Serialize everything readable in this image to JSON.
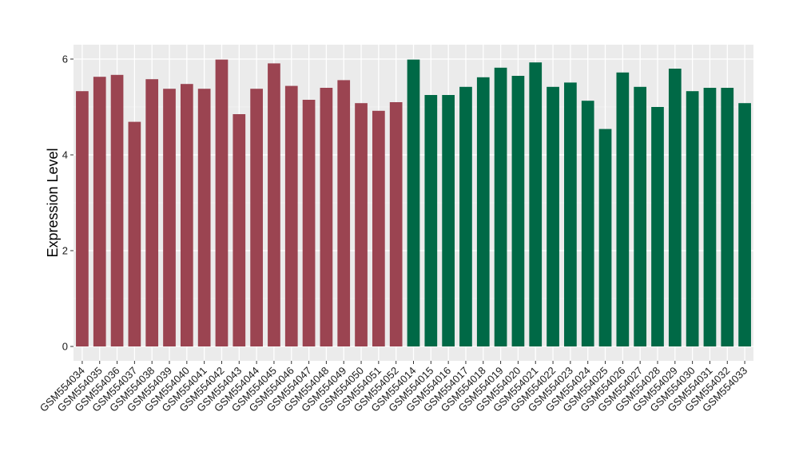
{
  "chart_data": {
    "type": "bar",
    "ylabel": "Expression Level",
    "xlabel": "",
    "ylim": [
      -0.3,
      6.3
    ],
    "yticks": [
      0,
      2,
      4,
      6
    ],
    "grid": true,
    "panel_background": "#ebebeb",
    "categories": [
      "GSM554034",
      "GSM554035",
      "GSM554036",
      "GSM554037",
      "GSM554038",
      "GSM554039",
      "GSM554040",
      "GSM554041",
      "GSM554042",
      "GSM554043",
      "GSM554044",
      "GSM554045",
      "GSM554046",
      "GSM554047",
      "GSM554048",
      "GSM554049",
      "GSM554050",
      "GSM554051",
      "GSM554052",
      "GSM554014",
      "GSM554015",
      "GSM554016",
      "GSM554017",
      "GSM554018",
      "GSM554019",
      "GSM554020",
      "GSM554021",
      "GSM554022",
      "GSM554023",
      "GSM554024",
      "GSM554025",
      "GSM554026",
      "GSM554027",
      "GSM554028",
      "GSM554029",
      "GSM554030",
      "GSM554031",
      "GSM554032",
      "GSM554033"
    ],
    "values": [
      5.33,
      5.63,
      5.67,
      4.69,
      5.58,
      5.38,
      5.48,
      5.38,
      5.99,
      4.85,
      5.38,
      5.91,
      5.44,
      5.15,
      5.4,
      5.56,
      5.08,
      4.92,
      5.1,
      5.99,
      5.25,
      5.25,
      5.42,
      5.62,
      5.82,
      5.65,
      5.93,
      5.42,
      5.51,
      5.13,
      4.54,
      5.72,
      5.42,
      5.0,
      5.8,
      5.33,
      5.4,
      5.4,
      5.08
    ],
    "group_sizes": [
      19,
      20
    ],
    "group_colors": [
      "#9b4451",
      "#006946"
    ]
  }
}
